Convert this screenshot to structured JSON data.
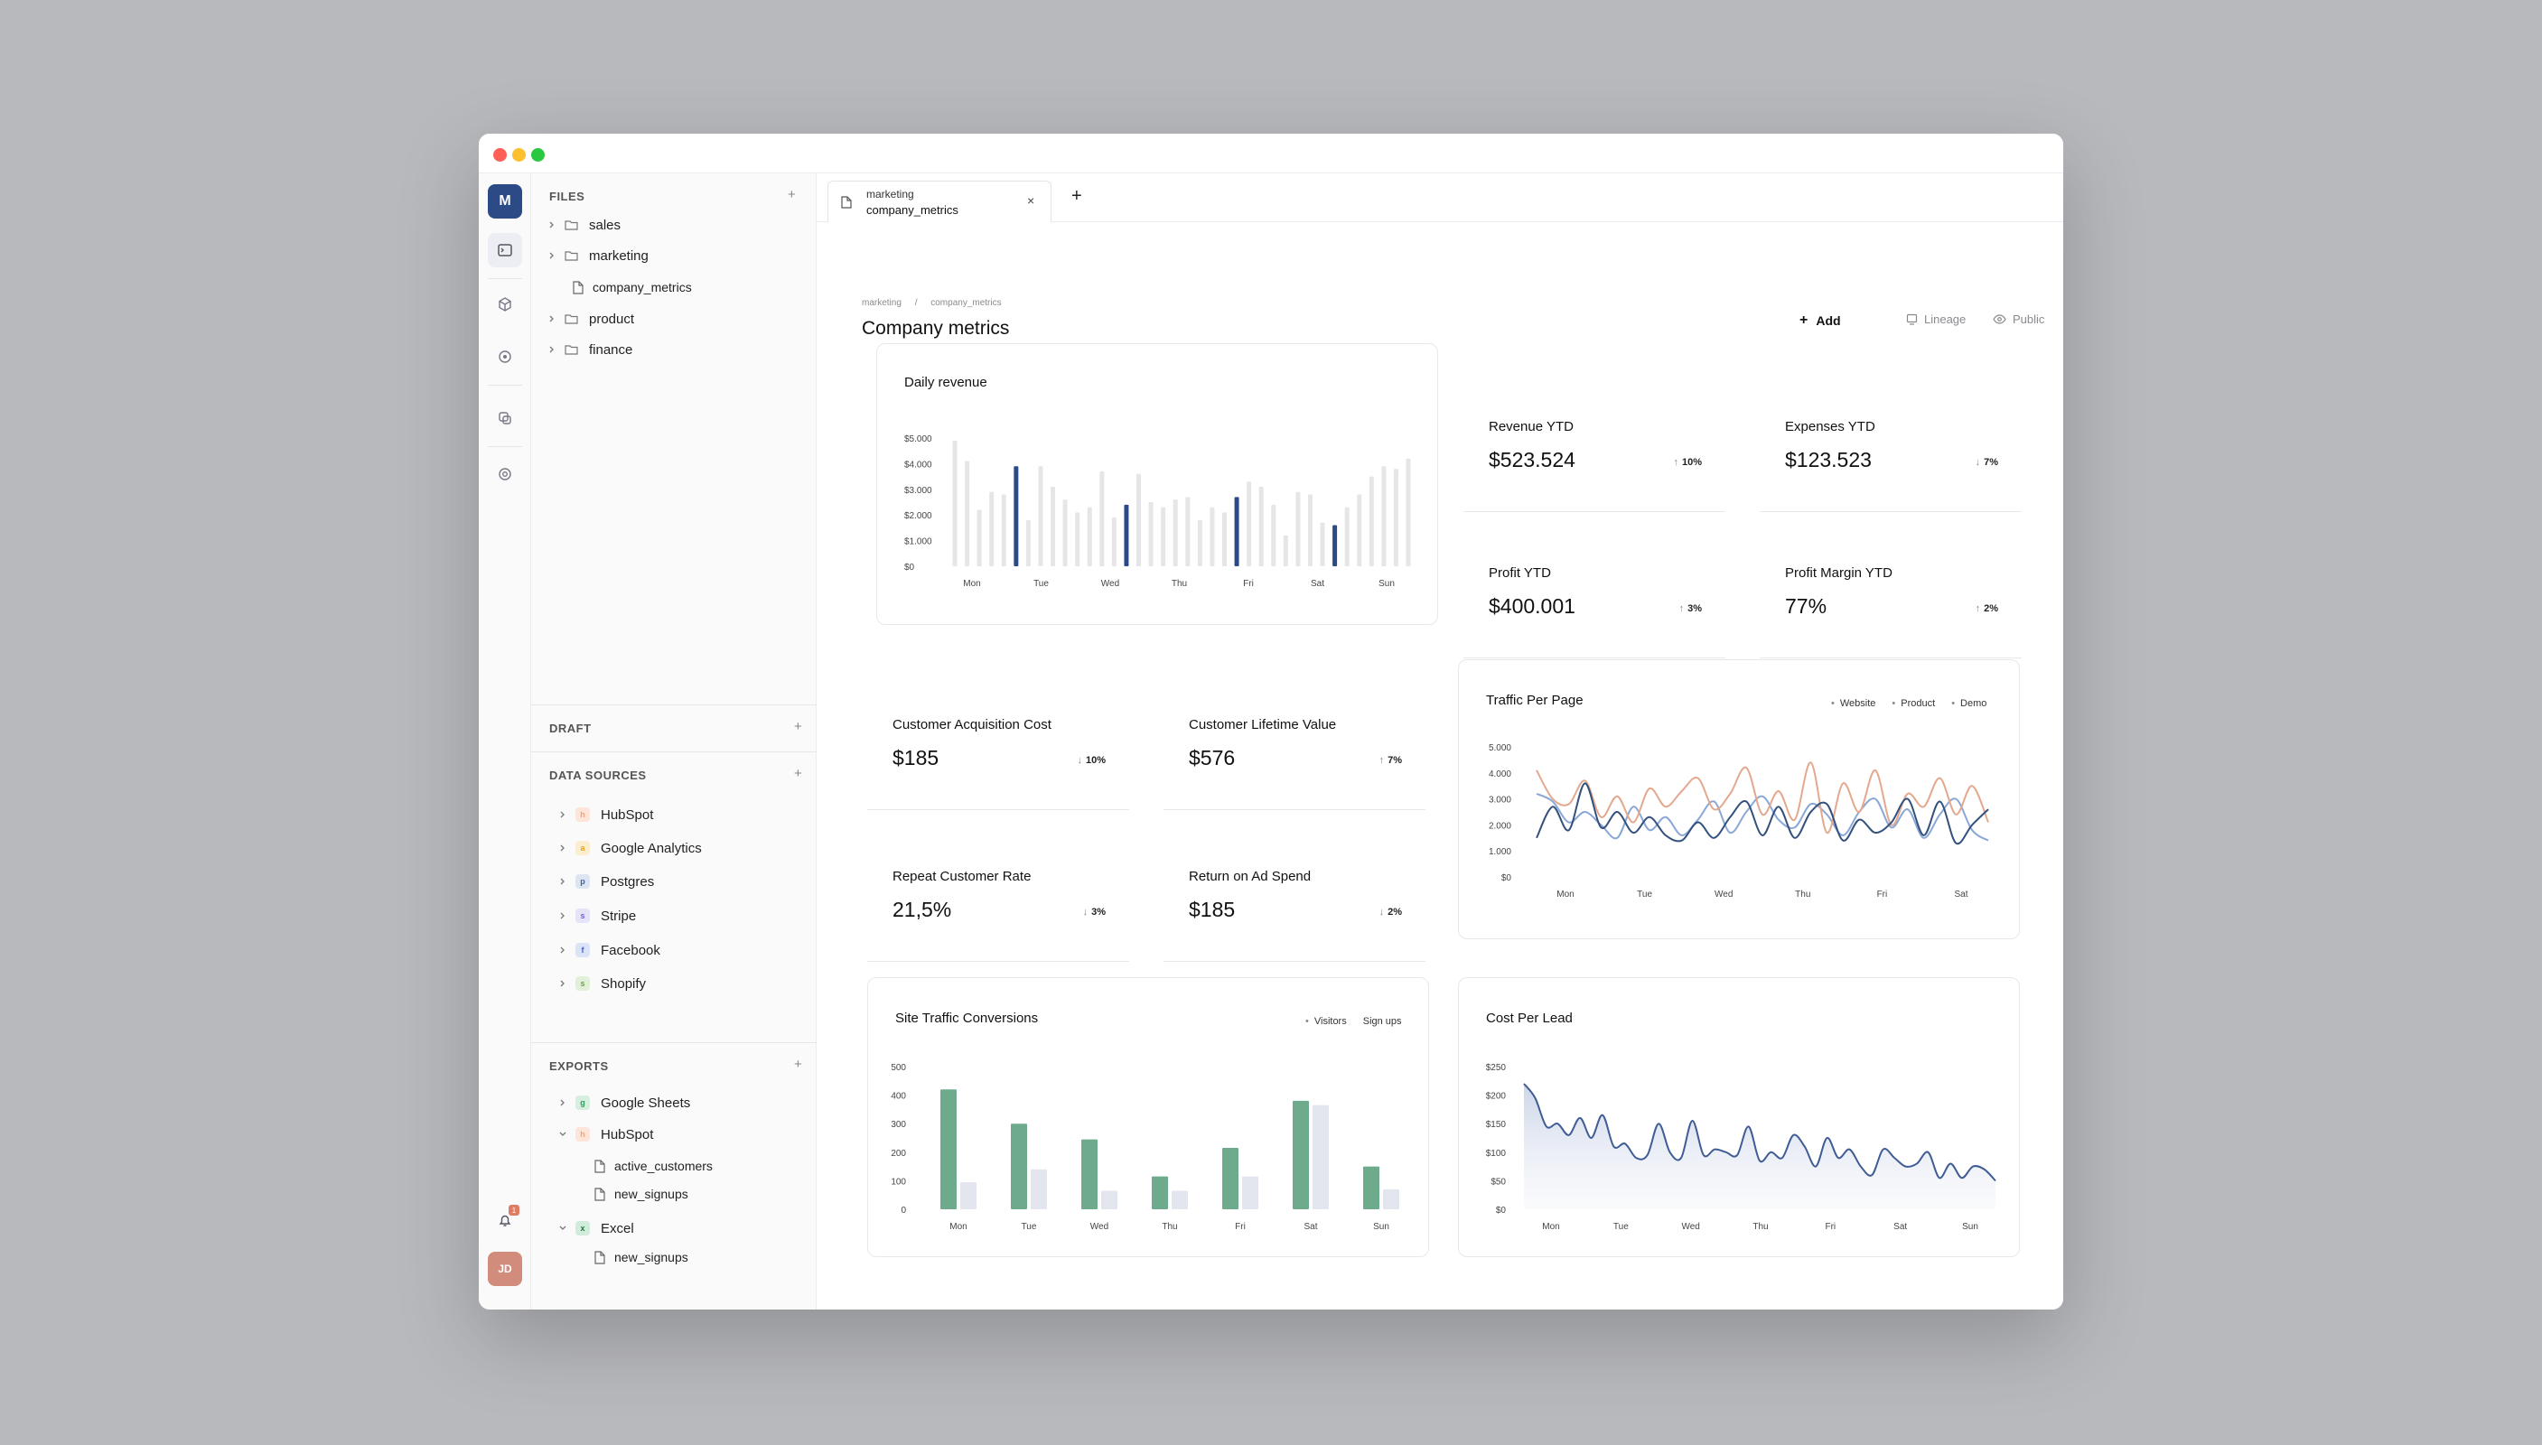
{
  "window": {
    "tab": {
      "line1": "marketing",
      "line2": "company_metrics",
      "close": "×"
    },
    "new_tab": "+"
  },
  "rail": {
    "logo": "M",
    "notif_count": "1",
    "avatar": "JD"
  },
  "sidebar": {
    "files_title": "FILES",
    "files": [
      {
        "name": "sales",
        "type": "folder"
      },
      {
        "name": "marketing",
        "type": "folder"
      },
      {
        "name": "company_metrics",
        "type": "file"
      },
      {
        "name": "product",
        "type": "folder"
      },
      {
        "name": "finance",
        "type": "folder"
      }
    ],
    "draft_title": "DRAFT",
    "sources_title": "DATA SOURCES",
    "sources": [
      {
        "name": "HubSpot",
        "badge": "h",
        "color": "#f3a27a",
        "bg": "#fde5da"
      },
      {
        "name": "Google Analytics",
        "badge": "a",
        "color": "#e6a21d",
        "bg": "#fcedcf"
      },
      {
        "name": "Postgres",
        "badge": "p",
        "color": "#44649c",
        "bg": "#dde5f2"
      },
      {
        "name": "Stripe",
        "badge": "s",
        "color": "#6a66d9",
        "bg": "#e4e3fa"
      },
      {
        "name": "Facebook",
        "badge": "f",
        "color": "#3b63c4",
        "bg": "#dbe4f7"
      },
      {
        "name": "Shopify",
        "badge": "s",
        "color": "#6aa34a",
        "bg": "#e3f0d9"
      }
    ],
    "exports_title": "EXPORTS",
    "exports": [
      {
        "name": "Google Sheets",
        "badge": "g",
        "color": "#2f9a59",
        "bg": "#d6efdf",
        "open": false
      },
      {
        "name": "HubSpot",
        "badge": "h",
        "color": "#f3a27a",
        "bg": "#fde5da",
        "open": true
      },
      {
        "name": "active_customers",
        "child": true
      },
      {
        "name": "new_signups",
        "child": true
      },
      {
        "name": "Excel",
        "badge": "x",
        "color": "#1f7a45",
        "bg": "#d2ecdc",
        "open": true
      },
      {
        "name": "new_signups",
        "child": true
      }
    ],
    "plus": "+"
  },
  "page": {
    "crumb_parent": "marketing",
    "crumb_sep": "/",
    "crumb_current": "company_metrics",
    "title": "Company metrics",
    "add_label": "Add",
    "lineage_label": "Lineage",
    "public_label": "Public"
  },
  "kpis": [
    {
      "label": "Revenue YTD",
      "value": "$523.524",
      "delta": "10%",
      "dir": "up"
    },
    {
      "label": "Expenses YTD",
      "value": "$123.523",
      "delta": "7%",
      "dir": "down"
    },
    {
      "label": "Profit YTD",
      "value": "$400.001",
      "delta": "3%",
      "dir": "up"
    },
    {
      "label": "Profit Margin YTD",
      "value": "77%",
      "delta": "2%",
      "dir": "up"
    },
    {
      "label": "Customer Acquisition Cost",
      "value": "$185",
      "delta": "10%",
      "dir": "down"
    },
    {
      "label": "Customer Lifetime Value",
      "value": "$576",
      "delta": "7%",
      "dir": "up"
    },
    {
      "label": "Repeat Customer Rate",
      "value": "21,5%",
      "delta": "3%",
      "dir": "down"
    },
    {
      "label": "Return on Ad Spend",
      "value": "$185",
      "delta": "2%",
      "dir": "down"
    }
  ],
  "chart_data": [
    {
      "type": "bar",
      "title": "Daily revenue",
      "yticks": [
        "$5.000",
        "$4.000",
        "$3.000",
        "$2.000",
        "$1.000",
        "$0"
      ],
      "ylim": [
        0,
        5000
      ],
      "xticks": [
        "Mon",
        "Tue",
        "Wed",
        "Thu",
        "Fri",
        "Sat",
        "Sun"
      ],
      "values": [
        4900,
        4100,
        2200,
        2900,
        2800,
        3900,
        1800,
        3900,
        3100,
        2600,
        2100,
        2300,
        3700,
        1900,
        2400,
        3600,
        2500,
        2300,
        2600,
        2700,
        1800,
        2300,
        2100,
        2700,
        3300,
        3100,
        2400,
        1200,
        2900,
        2800,
        1700,
        1600,
        2300,
        2800,
        3500,
        3900,
        3800,
        4200
      ],
      "highlight": [
        5,
        14,
        23,
        31,
        38
      ],
      "colors": {
        "bar": "#e6e6e9",
        "highlight": "#2c4a85"
      }
    },
    {
      "type": "line",
      "title": "Traffic Per Page",
      "yticks": [
        "5.000",
        "4.000",
        "3.000",
        "2.000",
        "1.000",
        "$0"
      ],
      "ylim": [
        0,
        5000
      ],
      "xticks": [
        "Mon",
        "Tue",
        "Wed",
        "Thu",
        "Fri",
        "Sat"
      ],
      "series": [
        {
          "name": "Website",
          "color": "#8aa7d6",
          "values": [
            3200,
            2900,
            2100,
            2500,
            2000,
            1500,
            2700,
            1800,
            2300,
            1600,
            2200,
            2900,
            1700,
            2500,
            3100,
            2200,
            1900,
            2800,
            2400,
            1600,
            2500,
            3000,
            1900,
            2600,
            1500,
            2400,
            3000,
            1800,
            1400
          ]
        },
        {
          "name": "Product",
          "color": "#e3a88e",
          "values": [
            4100,
            3000,
            2800,
            3700,
            2300,
            3100,
            2100,
            3400,
            2700,
            3300,
            3800,
            2600,
            3200,
            4200,
            2400,
            3300,
            2200,
            4400,
            1700,
            3600,
            2500,
            4100,
            2000,
            3200,
            2700,
            3800,
            2400,
            3500,
            2100
          ]
        },
        {
          "name": "Demo",
          "color": "#34517e",
          "values": [
            1500,
            2700,
            1800,
            3600,
            1900,
            2500,
            1700,
            2300,
            1600,
            1400,
            2100,
            1500,
            2300,
            2900,
            1600,
            2700,
            1500,
            2500,
            2800,
            1400,
            2200,
            1700,
            2100,
            3000,
            1600,
            2900,
            1300,
            2000,
            2600
          ]
        }
      ]
    },
    {
      "type": "bar",
      "title": "Site Traffic Conversions",
      "yticks": [
        "500",
        "400",
        "300",
        "200",
        "100",
        "0"
      ],
      "ylim": [
        0,
        500
      ],
      "categories": [
        "Mon",
        "Tue",
        "Wed",
        "Thu",
        "Fri",
        "Sat",
        "Sun"
      ],
      "series": [
        {
          "name": "Visitors",
          "color": "#6eab8c",
          "values": [
            420,
            300,
            245,
            115,
            215,
            380,
            150
          ]
        },
        {
          "name": "Sign ups",
          "color": "#e3e6ef",
          "values": [
            95,
            140,
            65,
            65,
            115,
            365,
            70
          ]
        }
      ]
    },
    {
      "type": "area",
      "title": "Cost Per Lead",
      "yticks": [
        "$250",
        "$200",
        "$150",
        "$100",
        "$50",
        "$0"
      ],
      "ylim": [
        0,
        250
      ],
      "xticks": [
        "Mon",
        "Tue",
        "Wed",
        "Thu",
        "Fri",
        "Sat",
        "Sun"
      ],
      "color": "#3f5c95",
      "values": [
        220,
        195,
        145,
        150,
        130,
        160,
        125,
        165,
        110,
        115,
        90,
        95,
        150,
        100,
        90,
        155,
        95,
        105,
        100,
        95,
        145,
        85,
        100,
        90,
        130,
        110,
        75,
        125,
        90,
        105,
        75,
        60,
        105,
        90,
        75,
        80,
        100,
        55,
        80,
        55,
        75,
        70,
        50
      ]
    }
  ]
}
